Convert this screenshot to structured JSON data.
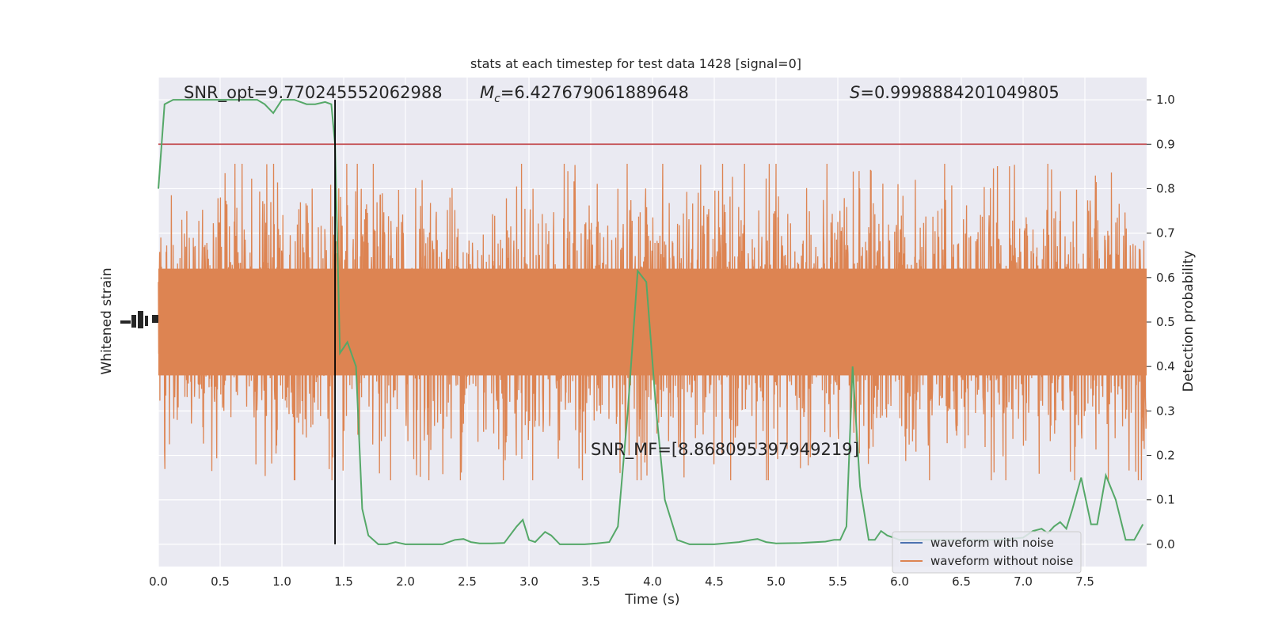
{
  "chart_data": {
    "type": "line",
    "title": "stats at each timestep for test data 1428 [signal=0]",
    "xlabel": "Time (s)",
    "ylabel_left": "Whitened strain",
    "ylabel_right": "Detection probability",
    "xlim": [
      0,
      8
    ],
    "ylim_right": [
      -0.05,
      1.05
    ],
    "x_ticks": [
      "0.0",
      "0.5",
      "1.0",
      "1.5",
      "2.0",
      "2.5",
      "3.0",
      "3.5",
      "4.0",
      "4.5",
      "5.0",
      "5.5",
      "6.0",
      "6.5",
      "7.0",
      "7.5"
    ],
    "x_tick_values": [
      0,
      0.5,
      1,
      1.5,
      2,
      2.5,
      3,
      3.5,
      4,
      4.5,
      5,
      5.5,
      6,
      6.5,
      7,
      7.5
    ],
    "y_right_ticks": [
      "0.0",
      "0.1",
      "0.2",
      "0.3",
      "0.4",
      "0.5",
      "0.6",
      "0.7",
      "0.8",
      "0.9",
      "1.0"
    ],
    "y_right_tick_values": [
      0,
      0.1,
      0.2,
      0.3,
      0.4,
      0.5,
      0.6,
      0.7,
      0.8,
      0.9,
      1.0
    ],
    "annotations": {
      "snr_opt": "SNR_opt=9.770245552062988",
      "mc_symbol": "M",
      "mc_sub": "c",
      "mc_value": "=6.427679061889648",
      "s_symbol": "S",
      "s_value": "=0.9998884201049805",
      "snr_mf": "SNR_MF=[8.868095397949219]"
    },
    "threshold": 0.9,
    "event_time": 1.43,
    "grid": true,
    "legend_position": "lower-right",
    "series": [
      {
        "name": "waveform with noise",
        "color": "#4c72b0"
      },
      {
        "name": "waveform without noise",
        "color": "#dd8452"
      }
    ],
    "colors": {
      "threshold": "#c44e52",
      "probability": "#55a868",
      "event_line": "#000000",
      "background": "#eaeaf2"
    },
    "detection_probability": {
      "x": [
        0,
        0.05,
        0.12,
        0.2,
        0.3,
        0.4,
        0.5,
        0.6,
        0.7,
        0.8,
        0.86,
        0.93,
        1.0,
        1.1,
        1.2,
        1.27,
        1.35,
        1.4,
        1.43,
        1.47,
        1.53,
        1.6,
        1.65,
        1.7,
        1.78,
        1.85,
        1.92,
        2.0,
        2.1,
        2.2,
        2.3,
        2.4,
        2.47,
        2.53,
        2.6,
        2.7,
        2.8,
        2.9,
        2.95,
        3.0,
        3.05,
        3.13,
        3.18,
        3.25,
        3.35,
        3.45,
        3.55,
        3.65,
        3.72,
        3.8,
        3.88,
        3.95,
        4.03,
        4.1,
        4.2,
        4.3,
        4.5,
        4.7,
        4.8,
        4.85,
        4.92,
        5.0,
        5.2,
        5.4,
        5.47,
        5.52,
        5.57,
        5.62,
        5.68,
        5.75,
        5.8,
        5.85,
        5.9,
        6.0,
        6.2,
        6.5,
        6.8,
        7.0,
        7.08,
        7.15,
        7.2,
        7.25,
        7.3,
        7.35,
        7.4,
        7.47,
        7.55,
        7.6,
        7.67,
        7.75,
        7.83,
        7.9,
        7.97
      ],
      "y": [
        0.8,
        0.99,
        1.0,
        1.0,
        1.0,
        1.0,
        1.0,
        1.0,
        1.0,
        1.0,
        0.99,
        0.97,
        1.0,
        1.0,
        0.99,
        0.99,
        0.995,
        0.99,
        0.9,
        0.43,
        0.455,
        0.4,
        0.08,
        0.02,
        0.0,
        0.0,
        0.005,
        0.0,
        0.0,
        0.0,
        0.0,
        0.01,
        0.012,
        0.005,
        0.002,
        0.002,
        0.003,
        0.04,
        0.055,
        0.01,
        0.005,
        0.028,
        0.02,
        0.0,
        0.0,
        0.0,
        0.002,
        0.005,
        0.04,
        0.3,
        0.615,
        0.59,
        0.3,
        0.1,
        0.01,
        0.0,
        0.0,
        0.005,
        0.01,
        0.012,
        0.005,
        0.002,
        0.003,
        0.006,
        0.01,
        0.01,
        0.04,
        0.4,
        0.13,
        0.01,
        0.01,
        0.03,
        0.02,
        0.01,
        0.01,
        0.01,
        0.01,
        0.015,
        0.03,
        0.035,
        0.025,
        0.04,
        0.05,
        0.035,
        0.08,
        0.15,
        0.045,
        0.045,
        0.155,
        0.1,
        0.01,
        0.01,
        0.045
      ]
    }
  }
}
